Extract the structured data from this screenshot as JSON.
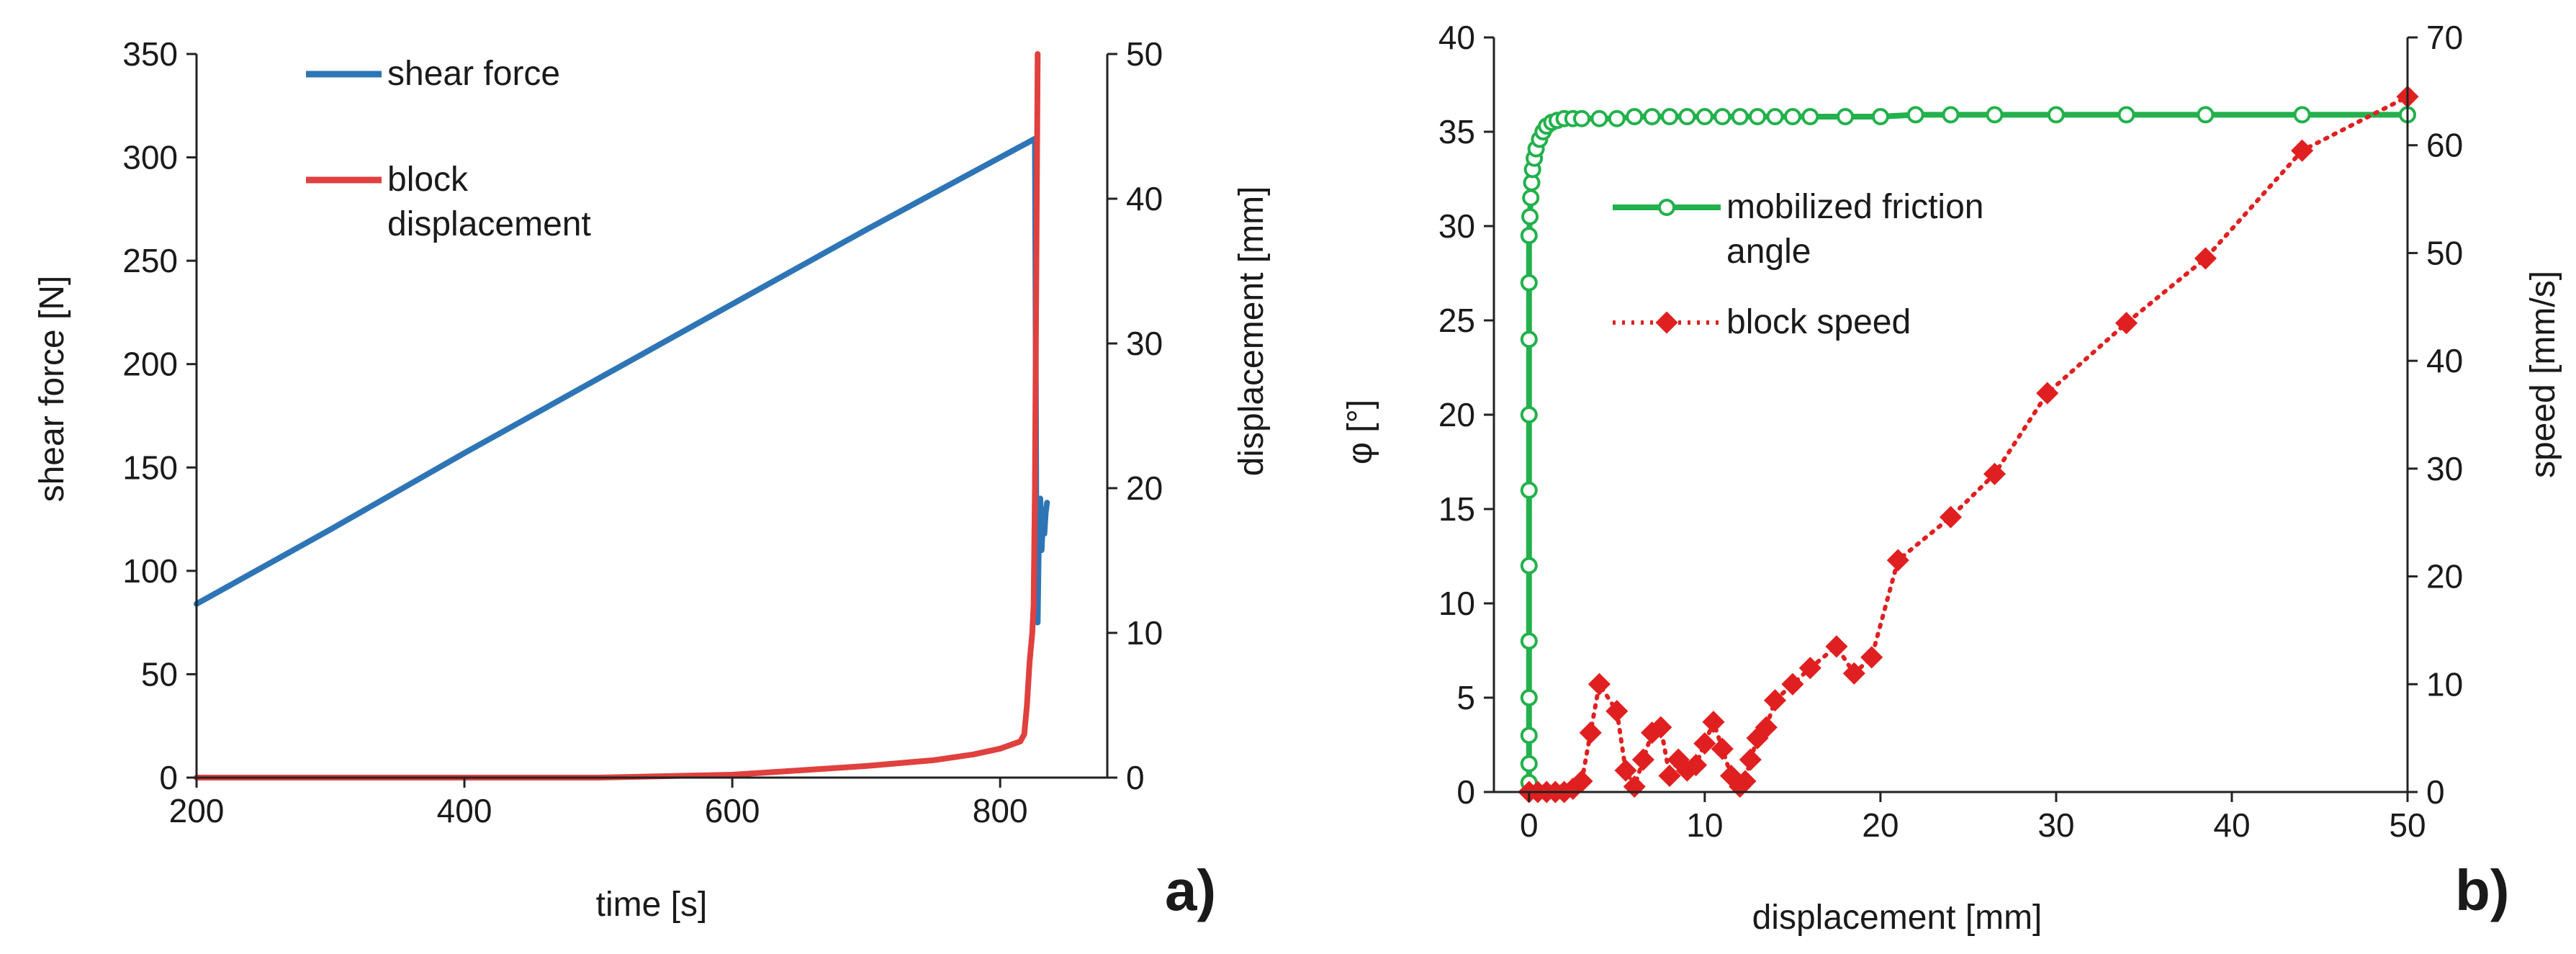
{
  "chart_data": [
    {
      "type": "line",
      "panel_label": "a)",
      "xlabel": "time [s]",
      "ylabel_left": "shear force [N]",
      "ylabel_right": "displacement [mm]",
      "xlim": [
        200,
        880
      ],
      "xticks": [
        200,
        400,
        600,
        800
      ],
      "ylim_left": [
        0,
        350
      ],
      "yticks_left": [
        0,
        50,
        100,
        150,
        200,
        250,
        300,
        350
      ],
      "ylim_right": [
        0,
        50
      ],
      "yticks_right": [
        0,
        10,
        20,
        30,
        40,
        50
      ],
      "legend": [
        "shear force",
        "block displacement"
      ],
      "legend_position": "top-left",
      "series": [
        {
          "name": "shear force",
          "color": "#2E75B6",
          "axis": "left",
          "x": [
            200,
            300,
            400,
            500,
            600,
            700,
            800,
            826,
            827,
            828,
            829,
            830,
            831,
            832,
            833,
            834,
            835
          ],
          "y": [
            84,
            120,
            157,
            193,
            229,
            265,
            300,
            309,
            130,
            75,
            120,
            135,
            110,
            125,
            118,
            128,
            133
          ]
        },
        {
          "name": "block displacement",
          "color": "#E0403E",
          "axis": "right",
          "x": [
            200,
            500,
            550,
            600,
            650,
            700,
            750,
            780,
            800,
            815,
            818,
            820,
            822,
            824,
            825,
            826,
            827,
            828
          ],
          "y": [
            0,
            0,
            0.1,
            0.2,
            0.5,
            0.8,
            1.2,
            1.6,
            2.0,
            2.5,
            3.0,
            5.0,
            8.0,
            10.0,
            12.0,
            20.0,
            35.0,
            50.0
          ]
        }
      ]
    },
    {
      "type": "line",
      "panel_label": "b)",
      "xlabel": "displacement [mm]",
      "ylabel_left": "φ [°]",
      "ylabel_right": "speed [mm/s]",
      "xlim": [
        -2,
        50
      ],
      "xticks": [
        0,
        10,
        20,
        30,
        40,
        50
      ],
      "ylim_left": [
        0,
        40
      ],
      "yticks_left": [
        0,
        5,
        10,
        15,
        20,
        25,
        30,
        35,
        40
      ],
      "ylim_right": [
        0,
        70
      ],
      "yticks_right": [
        0,
        10,
        20,
        30,
        40,
        50,
        60,
        70
      ],
      "legend": [
        "mobilized friction angle",
        "block speed"
      ],
      "legend_position": "center-left",
      "series": [
        {
          "name": "mobilized friction angle",
          "color": "#22B14C",
          "axis": "left",
          "marker": "circle-open",
          "x": [
            0,
            0,
            0,
            0,
            0,
            0,
            0,
            0,
            0,
            0,
            0,
            0.05,
            0.1,
            0.15,
            0.2,
            0.3,
            0.4,
            0.6,
            0.8,
            1.0,
            1.3,
            1.6,
            2.0,
            2.5,
            3.0,
            4.0,
            5.0,
            6.0,
            7.0,
            8.0,
            9.0,
            10.0,
            11.0,
            12.0,
            13.0,
            14.0,
            15.0,
            16.0,
            18.0,
            20.0,
            22.0,
            24.0,
            26.5,
            30.0,
            34.0,
            38.5,
            44.0,
            50.0
          ],
          "y": [
            0.5,
            1.5,
            3.0,
            5.0,
            8.0,
            12.0,
            16.0,
            20.0,
            24.0,
            27.0,
            29.5,
            30.5,
            31.5,
            32.3,
            33.0,
            33.6,
            34.1,
            34.6,
            35.0,
            35.3,
            35.5,
            35.6,
            35.7,
            35.7,
            35.7,
            35.7,
            35.7,
            35.8,
            35.8,
            35.8,
            35.8,
            35.8,
            35.8,
            35.8,
            35.8,
            35.8,
            35.8,
            35.8,
            35.8,
            35.8,
            35.9,
            35.9,
            35.9,
            35.9,
            35.9,
            35.9,
            35.9,
            35.9
          ]
        },
        {
          "name": "block speed",
          "color": "#E02020",
          "axis": "right",
          "marker": "diamond",
          "linestyle": "dotted",
          "x": [
            0,
            0.5,
            1.0,
            1.5,
            2.0,
            2.5,
            3.0,
            3.5,
            4.0,
            5.0,
            5.5,
            6.0,
            6.5,
            7.0,
            7.5,
            8.0,
            8.5,
            9.0,
            9.5,
            10.0,
            10.5,
            11.0,
            11.5,
            12.0,
            12.3,
            12.6,
            13.0,
            13.5,
            14.0,
            15.0,
            16.0,
            17.5,
            18.5,
            19.5,
            21.0,
            24.0,
            26.5,
            29.5,
            34.0,
            38.5,
            44.0,
            50.0
          ],
          "y": [
            0,
            0,
            0,
            0,
            0,
            0.3,
            1.0,
            5.5,
            10.0,
            7.5,
            2.0,
            0.5,
            3.0,
            5.5,
            6.0,
            1.5,
            3.0,
            2.0,
            2.5,
            4.5,
            6.5,
            4.0,
            1.5,
            0.5,
            1.0,
            3.0,
            5.0,
            6.0,
            8.5,
            10.0,
            11.5,
            13.5,
            11.0,
            12.5,
            21.5,
            25.5,
            29.5,
            37.0,
            43.5,
            49.5,
            59.5,
            64.5
          ]
        }
      ]
    }
  ]
}
